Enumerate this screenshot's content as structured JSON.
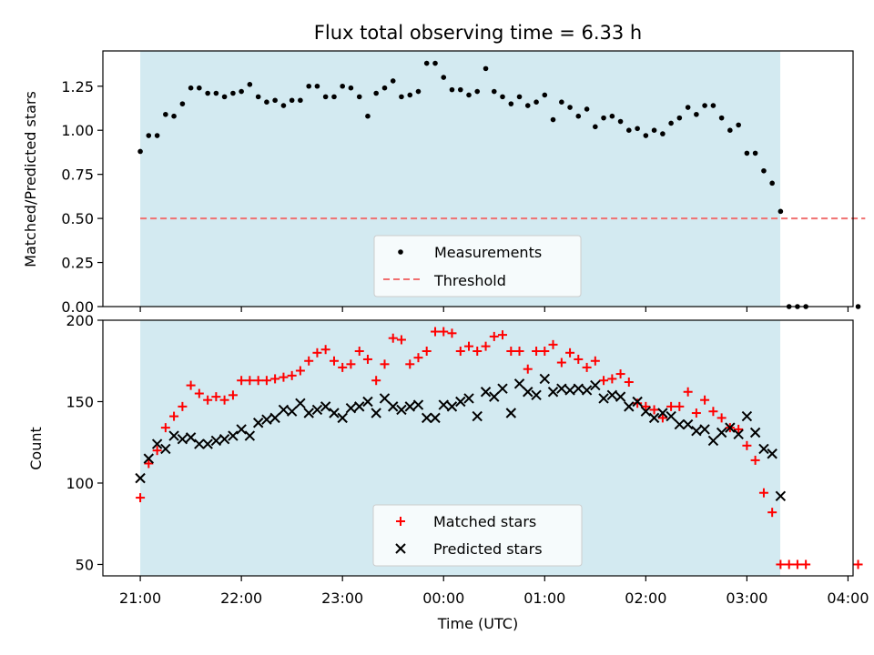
{
  "chart_data": [
    {
      "type": "scatter",
      "title": "Flux total observing time = 6.33 h",
      "xlabel": "",
      "ylabel": "Matched/Predicted stars",
      "ylim": [
        0,
        1.45
      ],
      "xlim": [
        -0.37,
        7.05
      ],
      "yticks": [
        "0.00",
        "0.25",
        "0.50",
        "0.75",
        "1.00",
        "1.25"
      ],
      "yticks_values": [
        0,
        0.25,
        0.5,
        0.75,
        1.0,
        1.25
      ],
      "x_axis": "time (hours after 21:00 UTC)",
      "observing_window": [
        0,
        6.33
      ],
      "observing_window_color": "#d3eaf1",
      "legend_position": "lower-center",
      "threshold": {
        "name": "Threshold",
        "value": 0.5,
        "x_range": [
          0,
          7.17
        ],
        "color": "#f07070"
      },
      "series": [
        {
          "name": "Measurements",
          "color": "#000000",
          "x": [
            0,
            0.083,
            0.167,
            0.25,
            0.333,
            0.417,
            0.5,
            0.583,
            0.667,
            0.75,
            0.833,
            0.917,
            1.0,
            1.083,
            1.167,
            1.25,
            1.333,
            1.417,
            1.5,
            1.583,
            1.667,
            1.75,
            1.833,
            1.917,
            2.0,
            2.083,
            2.167,
            2.25,
            2.333,
            2.417,
            2.5,
            2.583,
            2.667,
            2.75,
            2.833,
            2.917,
            3.0,
            3.083,
            3.167,
            3.25,
            3.333,
            3.417,
            3.5,
            3.583,
            3.667,
            3.75,
            3.833,
            3.917,
            4.0,
            4.083,
            4.167,
            4.25,
            4.333,
            4.417,
            4.5,
            4.583,
            4.667,
            4.75,
            4.833,
            4.917,
            5.0,
            5.083,
            5.167,
            5.25,
            5.333,
            5.417,
            5.5,
            5.583,
            5.667,
            5.75,
            5.833,
            5.917,
            6.0,
            6.083,
            6.167,
            6.25,
            6.333,
            6.417,
            6.5,
            6.583,
            7.1
          ],
          "y": [
            0.88,
            0.97,
            0.97,
            1.09,
            1.08,
            1.15,
            1.24,
            1.24,
            1.21,
            1.21,
            1.19,
            1.21,
            1.22,
            1.26,
            1.19,
            1.16,
            1.17,
            1.14,
            1.17,
            1.17,
            1.25,
            1.25,
            1.19,
            1.19,
            1.25,
            1.24,
            1.19,
            1.08,
            1.21,
            1.24,
            1.28,
            1.19,
            1.2,
            1.22,
            1.38,
            1.38,
            1.3,
            1.23,
            1.23,
            1.2,
            1.22,
            1.35,
            1.22,
            1.19,
            1.15,
            1.19,
            1.14,
            1.16,
            1.2,
            1.06,
            1.16,
            1.13,
            1.08,
            1.12,
            1.02,
            1.07,
            1.08,
            1.05,
            1.0,
            1.01,
            0.97,
            1.0,
            0.98,
            1.04,
            1.07,
            1.13,
            1.09,
            1.14,
            1.14,
            1.07,
            1.0,
            1.03,
            0.87,
            0.87,
            0.77,
            0.7,
            0.54,
            0.0,
            0.0,
            0.0,
            0.0
          ]
        }
      ]
    },
    {
      "type": "scatter",
      "title": "",
      "xlabel": "Time (UTC)",
      "ylabel": "Count",
      "ylim": [
        43,
        200
      ],
      "xlim": [
        -0.37,
        7.05
      ],
      "yticks": [
        "50",
        "100",
        "150",
        "200"
      ],
      "yticks_values": [
        50,
        100,
        150,
        200
      ],
      "xticks": [
        "21:00",
        "22:00",
        "23:00",
        "00:00",
        "01:00",
        "02:00",
        "03:00",
        "04:00"
      ],
      "xticks_values": [
        0,
        1,
        2,
        3,
        4,
        5,
        6,
        7
      ],
      "x_axis": "time (hours after 21:00 UTC)",
      "observing_window": [
        0,
        6.33
      ],
      "legend_position": "lower-center",
      "series": [
        {
          "name": "Matched stars",
          "marker": "+",
          "color": "#ff0000",
          "x": [
            0,
            0.083,
            0.167,
            0.25,
            0.333,
            0.417,
            0.5,
            0.583,
            0.667,
            0.75,
            0.833,
            0.917,
            1.0,
            1.083,
            1.167,
            1.25,
            1.333,
            1.417,
            1.5,
            1.583,
            1.667,
            1.75,
            1.833,
            1.917,
            2.0,
            2.083,
            2.167,
            2.25,
            2.333,
            2.417,
            2.5,
            2.583,
            2.667,
            2.75,
            2.833,
            2.917,
            3.0,
            3.083,
            3.167,
            3.25,
            3.333,
            3.417,
            3.5,
            3.583,
            3.667,
            3.75,
            3.833,
            3.917,
            4.0,
            4.083,
            4.167,
            4.25,
            4.333,
            4.417,
            4.5,
            4.583,
            4.667,
            4.75,
            4.833,
            4.917,
            5.0,
            5.083,
            5.167,
            5.25,
            5.333,
            5.417,
            5.5,
            5.583,
            5.667,
            5.75,
            5.833,
            5.917,
            6.0,
            6.083,
            6.167,
            6.25,
            6.333,
            6.417,
            6.5,
            6.583,
            7.1
          ],
          "y": [
            91,
            112,
            120,
            134,
            141,
            147,
            160,
            155,
            151,
            153,
            151,
            154,
            163,
            163,
            163,
            163,
            164,
            165,
            166,
            169,
            175,
            180,
            182,
            175,
            171,
            173,
            181,
            176,
            163,
            173,
            189,
            188,
            173,
            177,
            181,
            193,
            193,
            192,
            181,
            184,
            181,
            184,
            190,
            191,
            181,
            181,
            170,
            181,
            181,
            185,
            174,
            180,
            176,
            171,
            175,
            163,
            164,
            167,
            162,
            149,
            147,
            145,
            140,
            147,
            147,
            156,
            143,
            151,
            144,
            140,
            134,
            133,
            123,
            114,
            94,
            82,
            50,
            50,
            50,
            50,
            50
          ]
        },
        {
          "name": "Predicted stars",
          "marker": "x",
          "color": "#000000",
          "x": [
            0,
            0.083,
            0.167,
            0.25,
            0.333,
            0.417,
            0.5,
            0.583,
            0.667,
            0.75,
            0.833,
            0.917,
            1.0,
            1.083,
            1.167,
            1.25,
            1.333,
            1.417,
            1.5,
            1.583,
            1.667,
            1.75,
            1.833,
            1.917,
            2.0,
            2.083,
            2.167,
            2.25,
            2.333,
            2.417,
            2.5,
            2.583,
            2.667,
            2.75,
            2.833,
            2.917,
            3.0,
            3.083,
            3.167,
            3.25,
            3.333,
            3.417,
            3.5,
            3.583,
            3.667,
            3.75,
            3.833,
            3.917,
            4.0,
            4.083,
            4.167,
            4.25,
            4.333,
            4.417,
            4.5,
            4.583,
            4.667,
            4.75,
            4.833,
            4.917,
            5.0,
            5.083,
            5.167,
            5.25,
            5.333,
            5.417,
            5.5,
            5.583,
            5.667,
            5.75,
            5.833,
            5.917,
            6.0,
            6.083,
            6.167,
            6.25,
            6.333
          ],
          "y": [
            103,
            115,
            124,
            121,
            129,
            127,
            128,
            124,
            124,
            126,
            127,
            129,
            133,
            129,
            137,
            139,
            140,
            145,
            144,
            149,
            143,
            145,
            147,
            143,
            140,
            146,
            147,
            150,
            143,
            152,
            147,
            145,
            147,
            148,
            140,
            140,
            148,
            147,
            150,
            152,
            141,
            156,
            153,
            158,
            143,
            161,
            156,
            154,
            164,
            156,
            158,
            157,
            158,
            157,
            160,
            152,
            154,
            153,
            147,
            150,
            144,
            140,
            143,
            141,
            136,
            136,
            132,
            133,
            126,
            131,
            134,
            130,
            141,
            131,
            121,
            118,
            92
          ]
        }
      ]
    }
  ]
}
